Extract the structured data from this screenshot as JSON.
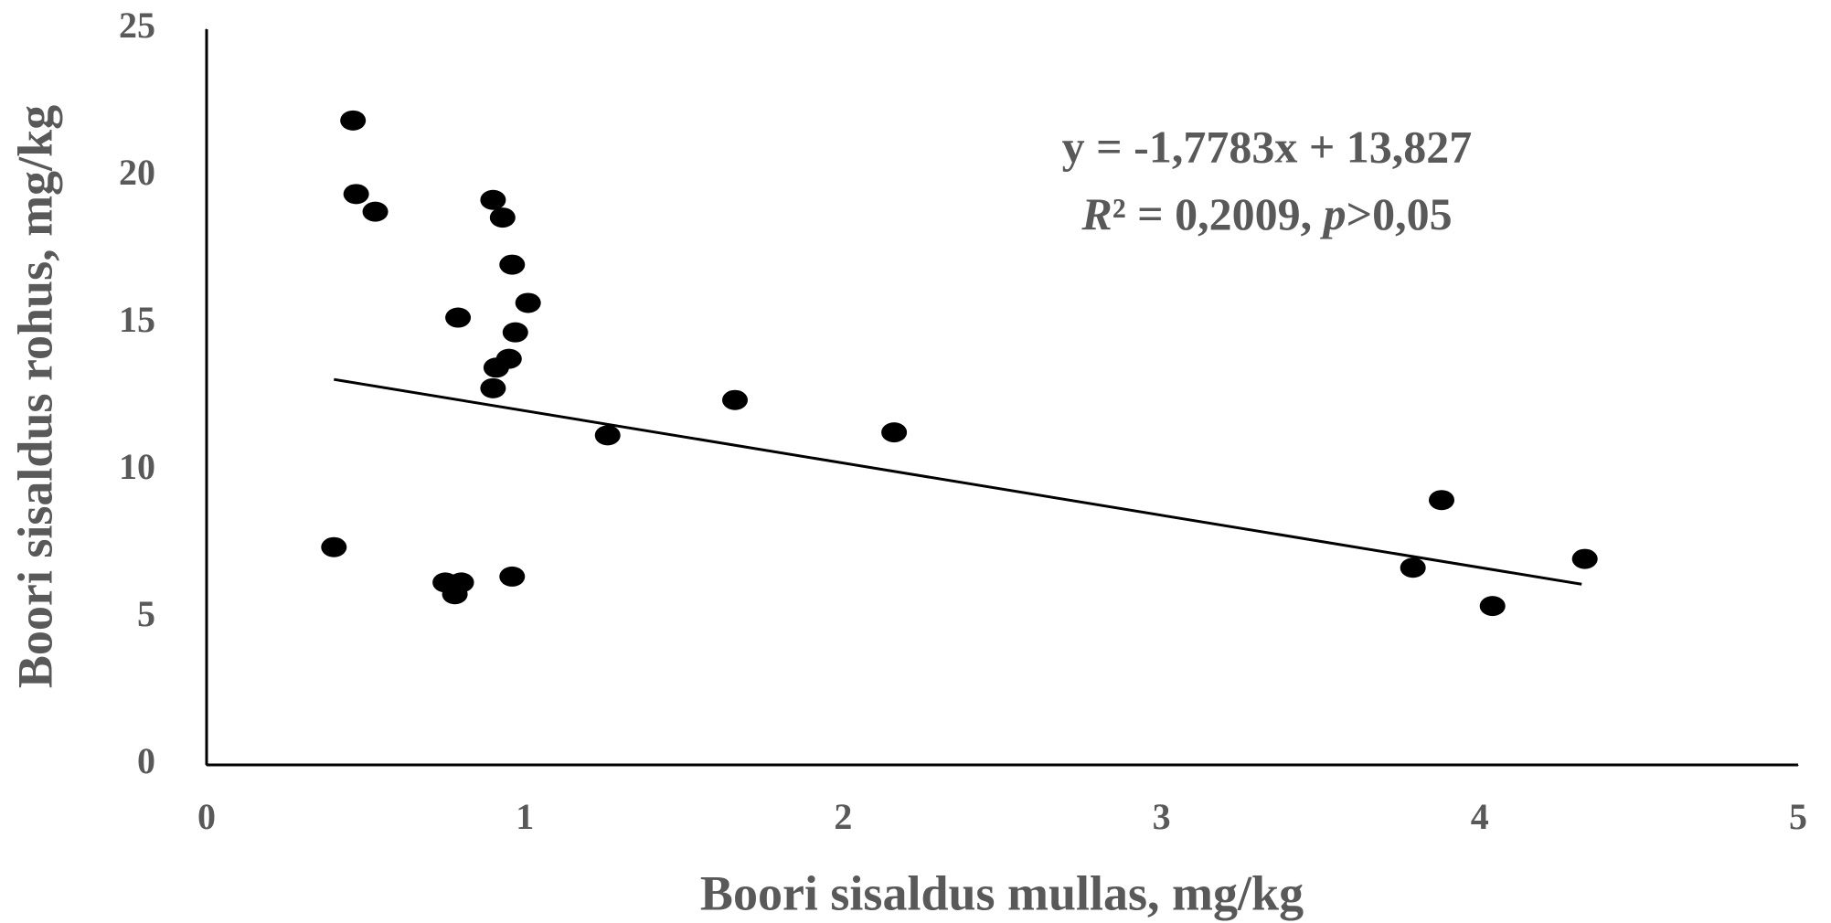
{
  "chart_data": {
    "type": "scatter",
    "x_label": "Boori sisaldus mullas, mg/kg",
    "y_label": "Boori sisaldus rohus, mg/kg",
    "x": [
      0.46,
      0.47,
      0.53,
      0.9,
      0.93,
      0.96,
      1.01,
      0.79,
      0.97,
      0.95,
      0.91,
      0.9,
      1.26,
      1.66,
      2.16,
      0.4,
      0.75,
      0.8,
      0.78,
      0.96,
      3.79,
      3.88,
      4.04,
      4.33
    ],
    "values": [
      21.9,
      19.4,
      18.8,
      19.2,
      18.6,
      17.0,
      15.7,
      15.2,
      14.7,
      13.8,
      13.5,
      12.8,
      11.2,
      12.4,
      11.3,
      7.4,
      6.2,
      6.2,
      5.8,
      6.4,
      6.7,
      9.0,
      5.4,
      7.0
    ],
    "color": "#000000",
    "trendline": {
      "x": [
        0.4,
        4.32
      ],
      "values": [
        13.1,
        6.14
      ],
      "color": "#000000"
    },
    "annotation": [
      "y = -1,7783x + 13,827",
      [
        {
          "text": "R",
          "italic": true
        },
        {
          "text": "² = 0,2009, "
        },
        {
          "text": "p",
          "italic": true
        },
        {
          "text": ">0,05"
        }
      ]
    ],
    "xlim": [
      0,
      5
    ],
    "xticks": [
      0,
      1,
      2,
      3,
      4,
      5
    ],
    "ylim": [
      0,
      25
    ],
    "yticks": [
      0,
      5,
      10,
      15,
      20,
      25
    ]
  }
}
